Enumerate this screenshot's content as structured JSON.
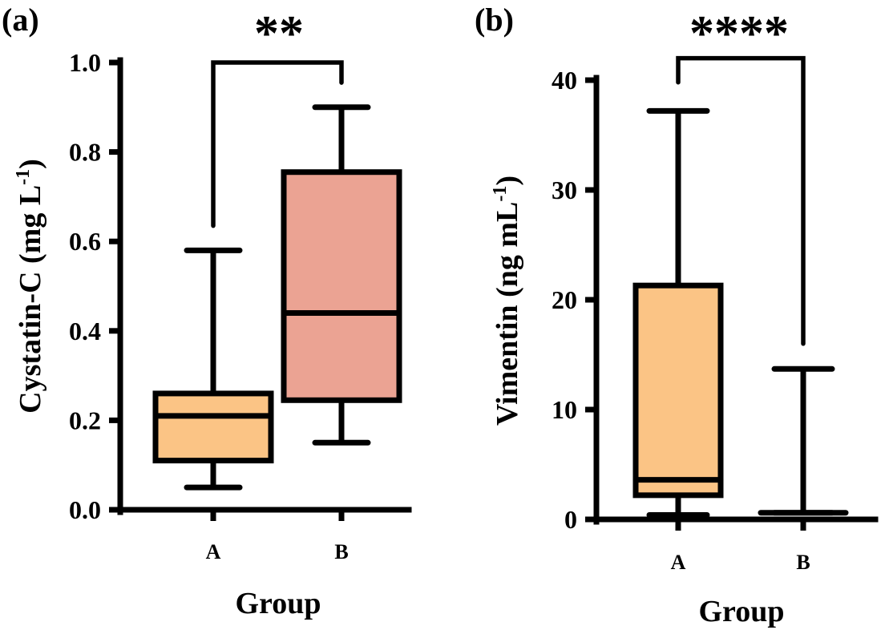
{
  "chart_data": [
    {
      "type": "box",
      "panel_label": "(a)",
      "xlabel": "Group",
      "ylabel": "Cystatin-C (mg L",
      "ylabel_sup": "-1",
      "ylabel_close": ")",
      "ylim": [
        0,
        1.0
      ],
      "yticks": [
        0,
        0.2,
        0.4,
        0.6,
        0.8,
        1.0
      ],
      "ytick_labels": [
        "0.0",
        "0.2",
        "0.4",
        "0.6",
        "0.8",
        "1.0"
      ],
      "categories": [
        "A",
        "B"
      ],
      "boxes": [
        {
          "group": "A",
          "min": 0.05,
          "q1": 0.11,
          "median": 0.21,
          "q3": 0.26,
          "max": 0.58,
          "color": "#FBC485"
        },
        {
          "group": "B",
          "min": 0.15,
          "q1": 0.245,
          "median": 0.44,
          "q3": 0.755,
          "max": 0.9,
          "color": "#EBA393"
        }
      ],
      "significance": {
        "label": "**",
        "from": "A",
        "to": "B",
        "bracket_y": 1.0,
        "left_y": 0.635,
        "right_y": 0.955
      }
    },
    {
      "type": "box",
      "panel_label": "(b)",
      "xlabel": "Group",
      "ylabel": "Vimentin (ng mL",
      "ylabel_sup": "-1",
      "ylabel_close": ")",
      "ylim": [
        0,
        40
      ],
      "yticks": [
        0,
        10,
        20,
        30,
        40
      ],
      "ytick_labels": [
        "0",
        "10",
        "20",
        "30",
        "40"
      ],
      "categories": [
        "A",
        "B"
      ],
      "boxes": [
        {
          "group": "A",
          "min": 0.4,
          "q1": 2.2,
          "median": 3.6,
          "q3": 21.3,
          "max": 37.2,
          "color": "#FBC485"
        },
        {
          "group": "B",
          "min": 0.6,
          "q1": 0.6,
          "median": 0.6,
          "q3": 0.6,
          "max": 13.7,
          "color": "#EBA393"
        }
      ],
      "significance": {
        "label": "****",
        "from": "A",
        "to": "B",
        "bracket_y": 42,
        "left_y": 39.8,
        "right_y": 16.0
      }
    }
  ]
}
